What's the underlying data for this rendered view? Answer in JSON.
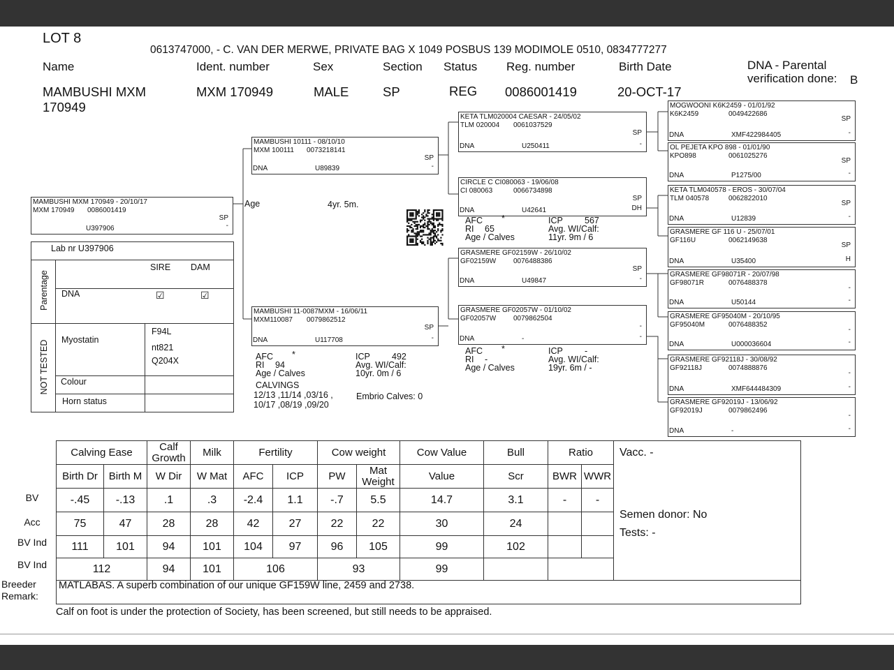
{
  "header": {
    "lot": "LOT 8",
    "breeder_line": "0613747000, - C. VAN DER MERWE, PRIVATE BAG X 1049 POSBUS 139 MODIMOLE 0510, 0834777277"
  },
  "labels": {
    "name": "Name",
    "ident": "Ident. number",
    "sex": "Sex",
    "section": "Section",
    "status": "Status",
    "reg": "Reg. number",
    "birth": "Birth Date",
    "dna_parental": "DNA - Parental verification done:"
  },
  "animal": {
    "name": "MAMBUSHI MXM 170949",
    "ident": "MXM 170949",
    "sex": "MALE",
    "section": "SP",
    "status": "REG",
    "reg": "0086001419",
    "birth": "20-OCT-17",
    "dna_parental": "B"
  },
  "age": {
    "label": "Age",
    "value": "4yr. 5m."
  },
  "pedigree": [
    {
      "title": "MAMBUSHI MXM 170949 - 20/10/17",
      "ident": "MXM 170949",
      "reg": "0086001419",
      "dna_label": "",
      "dna": "U397906",
      "flag1": "SP",
      "flag2": "-"
    },
    {
      "title": "MAMBUSHI 10111 - 08/10/10",
      "ident": "MXM 100111",
      "reg": "0073218141",
      "dna_label": "DNA",
      "dna": "U89839",
      "flag1": "SP",
      "flag2": "-"
    },
    {
      "title": "MAMBUSHI 11-0087MXM - 16/06/11",
      "ident": "MXM110087",
      "reg": "0079862512",
      "dna_label": "DNA",
      "dna": "U117708",
      "flag1": "SP",
      "flag2": "-"
    },
    {
      "title": "KETA TLM020004 CAESAR - 24/05/02",
      "ident": "TLM 020004",
      "reg": "0061037529",
      "dna_label": "DNA",
      "dna": "U250411",
      "flag1": "SP",
      "flag2": "-"
    },
    {
      "title": "CIRCLE C CI080063 - 19/06/08",
      "ident": "CI  080063",
      "reg": "0066734898",
      "dna_label": "DNA",
      "dna": "U42641",
      "flag1": "SP",
      "flag2": "DH"
    },
    {
      "title": "GRASMERE GF02159W - 26/10/02",
      "ident": "GF02159W",
      "reg": "0076488386",
      "dna_label": "DNA",
      "dna": "U49847",
      "flag1": "SP",
      "flag2": "-"
    },
    {
      "title": "GRASMERE GF02057W - 01/10/02",
      "ident": "GF02057W",
      "reg": "0079862504",
      "dna_label": "DNA",
      "dna": "-",
      "flag1": "-",
      "flag2": "-"
    },
    {
      "title": "MOGWOONI K6K2459 - 01/01/92",
      "ident": "K6K2459",
      "reg": "0049422686",
      "dna_label": "DNA",
      "dna": "XMF422984405",
      "flag1": "SP",
      "flag2": "-"
    },
    {
      "title": "OL PEJETA KPO 898 - 01/01/90",
      "ident": "KPO898",
      "reg": "0061025276",
      "dna_label": "DNA",
      "dna": "P1275/00",
      "flag1": "SP",
      "flag2": "-"
    },
    {
      "title": "KETA TLM040578 - EROS - 30/07/04",
      "ident": "TLM 040578",
      "reg": "0062822010",
      "dna_label": "DNA",
      "dna": "U12839",
      "flag1": "SP",
      "flag2": "-"
    },
    {
      "title": "GRASMERE GF 116 U - 25/07/01",
      "ident": "GF116U",
      "reg": "0062149638",
      "dna_label": "DNA",
      "dna": "U35400",
      "flag1": "SP",
      "flag2": "H"
    },
    {
      "title": "GRASMERE GF98071R - 20/07/98",
      "ident": "GF98071R",
      "reg": "0076488378",
      "dna_label": "DNA",
      "dna": "U50144",
      "flag1": "-",
      "flag2": "-"
    },
    {
      "title": "GRASMERE GF95040M - 20/10/95",
      "ident": "GF95040M",
      "reg": "0076488352",
      "dna_label": "DNA",
      "dna": "U000036604",
      "flag1": "-",
      "flag2": "-"
    },
    {
      "title": "GRASMERE GF92118J - 30/08/92",
      "ident": "GF92118J",
      "reg": "0074888876",
      "dna_label": "DNA",
      "dna": "XMF644484309",
      "flag1": "-",
      "flag2": "-"
    },
    {
      "title": "GRASMERE GF92019J - 13/06/92",
      "ident": "GF92019J",
      "reg": "0079862496",
      "dna_label": "DNA",
      "dna": "-",
      "flag1": "-",
      "flag2": "-"
    }
  ],
  "performance": [
    {
      "afc": "AFC",
      "afc_v": "*",
      "ri": "RI",
      "ri_v": "94",
      "age_calves": "Age / Calves",
      "icp": "ICP",
      "icp_v": "492",
      "avg": "Avg. WI/Calf:",
      "age_v": "10yr. 0m  / 6"
    },
    {
      "afc": "AFC",
      "afc_v": "*",
      "ri": "RI",
      "ri_v": "65",
      "age_calves": "Age / Calves",
      "icp": "ICP",
      "icp_v": "567",
      "avg": "Avg. WI/Calf:",
      "age_v": "11yr. 9m  / 6"
    },
    {
      "afc": "AFC",
      "afc_v": "*",
      "ri": "RI",
      "ri_v": "-",
      "age_calves": "Age / Calves",
      "icp": "ICP",
      "icp_v": "-",
      "avg": "Avg. WI/Calf:",
      "age_v": "19yr. 6m  / -"
    }
  ],
  "calvings": {
    "label": "CALVINGS",
    "line1": "12/13 ,11/14 ,03/16 ,",
    "line2": "10/17 ,08/19 ,09/20",
    "embrio": "Embrio Calves: 0"
  },
  "lab": {
    "lab_nr": "Lab nr  U397906",
    "parentage": "Parentage",
    "not_tested": "NOT TESTED",
    "sire": "SIRE",
    "dam": "DAM",
    "dna": "DNA",
    "myostatin": "Myostatin",
    "myo_values": [
      "F94L",
      "nt821",
      "Q204X"
    ],
    "colour": "Colour",
    "horn": "Horn status",
    "sire_checked": true,
    "dam_checked": true
  },
  "bv_table": {
    "groups": [
      "Calving Ease",
      "Calf Growth",
      "Milk",
      "Fertility",
      "Cow weight",
      "Cow Value",
      "Bull",
      "Ratio"
    ],
    "columns": [
      "Birth Dr",
      "Birth M",
      "W Dir",
      "W Mat",
      "AFC",
      "ICP",
      "PW",
      "Mat Weight",
      "Value",
      "Scr",
      "BWR",
      "WWR"
    ],
    "row_labels": [
      "BV",
      "Acc",
      "BV Ind",
      "BV Ind"
    ],
    "bv": [
      "-.45",
      "-.13",
      ".1",
      ".3",
      "-2.4",
      "1.1",
      "-.7",
      "5.5",
      "14.7",
      "3.1",
      "-",
      "-"
    ],
    "acc": [
      "75",
      "47",
      "28",
      "28",
      "42",
      "27",
      "22",
      "22",
      "30",
      "24",
      "",
      ""
    ],
    "bv_ind": [
      "111",
      "101",
      "94",
      "101",
      "104",
      "97",
      "96",
      "105",
      "99",
      "102",
      "",
      ""
    ],
    "bv_ind_group": [
      "112",
      "94",
      "101",
      "106",
      "93",
      "99",
      "",
      ""
    ],
    "vacc": "Vacc. -",
    "semen": "Semen donor: No",
    "tests": "Tests: -",
    "remark_label": "Breeder Remark:",
    "remark": "MATLABAS. A superb combination of our unique GF159W line, 2459 and 2738."
  },
  "footer": {
    "note": "Calf on foot is under the protection of Society, has been screened, but still needs to be appraised."
  }
}
